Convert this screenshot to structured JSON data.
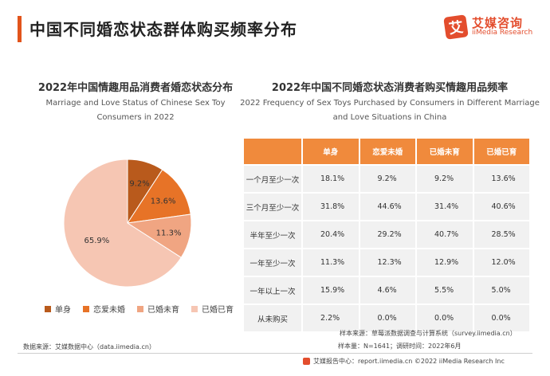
{
  "header": {
    "title": "中国不同婚恋状态群体购买频率分布"
  },
  "logo": {
    "mark": "艾",
    "cn": "艾媒咨询",
    "en": "iiMedia Research"
  },
  "colors": {
    "accent": "#e2541b",
    "table_header": "#f08a3c",
    "table_cell": "#f1f1f1"
  },
  "chart_data": [
    {
      "type": "pie",
      "title": "2022年中国情趣用品消费者婚恋状态分布",
      "subtitle": "Marriage and Love Status of Chinese Sex Toy Consumers in 2022",
      "slices": [
        {
          "label": "单身",
          "value": 9.2,
          "display": "9.2%",
          "color": "#b95a1c"
        },
        {
          "label": "恋爱未婚",
          "value": 13.6,
          "display": "13.6%",
          "color": "#e77327"
        },
        {
          "label": "已婚未育",
          "value": 11.3,
          "display": "11.3%",
          "color": "#f0a582"
        },
        {
          "label": "已婚已育",
          "value": 65.9,
          "display": "65.9%",
          "color": "#f6c6b3"
        }
      ]
    },
    {
      "type": "table",
      "title": "2022年中国不同婚恋状态消费者购买情趣用品频率",
      "subtitle": "2022 Frequency of Sex Toys Purchased by Consumers in Different Marriage and Love Situations in China",
      "columns": [
        "",
        "单身",
        "恋爱未婚",
        "已婚未育",
        "已婚已育"
      ],
      "rows": [
        {
          "label": "一个月至少一次",
          "values": [
            "18.1%",
            "9.2%",
            "9.2%",
            "13.6%"
          ]
        },
        {
          "label": "三个月至少一次",
          "values": [
            "31.8%",
            "44.6%",
            "31.4%",
            "40.6%"
          ]
        },
        {
          "label": "半年至少一次",
          "values": [
            "20.4%",
            "29.2%",
            "40.7%",
            "28.5%"
          ]
        },
        {
          "label": "一年至少一次",
          "values": [
            "11.3%",
            "12.3%",
            "12.9%",
            "12.0%"
          ]
        },
        {
          "label": "一年以上一次",
          "values": [
            "15.9%",
            "4.6%",
            "5.5%",
            "5.0%"
          ]
        },
        {
          "label": "从未购买",
          "values": [
            "2.2%",
            "0.0%",
            "0.0%",
            "0.0%"
          ]
        }
      ]
    }
  ],
  "sources": {
    "right_line1": "样本来源：草莓派数据调查与计算系统（survey.iimedia.cn）",
    "right_line2": "样本量：N=1641；调研时间：2022年6月",
    "left": "数据来源：艾媒数据中心（data.iimedia.cn）"
  },
  "footer": {
    "text": "艾媒报告中心：report.iimedia.cn  ©2022  iiMedia Research  Inc"
  }
}
